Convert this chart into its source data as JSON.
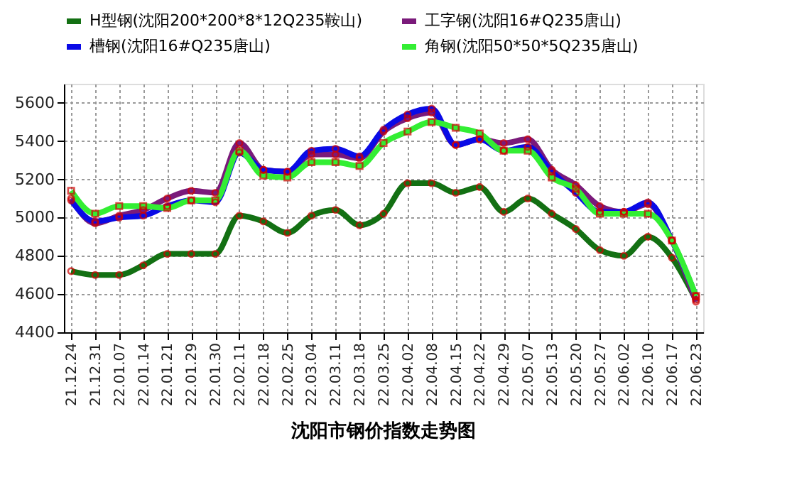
{
  "chart_data": {
    "type": "line",
    "title": "沈阳市钢价指数走势图",
    "categories": [
      "21.12.24",
      "21.12.31",
      "22.01.07",
      "22.01.14",
      "22.01.21",
      "22.01.29",
      "22.01.30",
      "22.02.11",
      "22.02.18",
      "22.02.25",
      "22.03.04",
      "22.03.11",
      "22.03.18",
      "22.03.25",
      "22.04.02",
      "22.04.08",
      "22.04.15",
      "22.04.22",
      "22.04.29",
      "22.05.07",
      "22.05.13",
      "22.05.20",
      "22.05.27",
      "22.06.02",
      "22.06.10",
      "22.06.17",
      "22.06.23"
    ],
    "series": [
      {
        "name": "H型钢(沈阳200*200*8*12Q235鞍山)",
        "color": "#137013",
        "marker": "circle",
        "values": [
          4720,
          4700,
          4700,
          4750,
          4810,
          4810,
          4810,
          5010,
          4980,
          4920,
          5010,
          5040,
          4960,
          5020,
          5180,
          5180,
          5130,
          5160,
          5030,
          5100,
          5020,
          4940,
          4830,
          4800,
          4900,
          4790,
          4570
        ]
      },
      {
        "name": "工字钢(沈阳16#Q235唐山)",
        "color": "#7a1a7a",
        "marker": "circle",
        "values": [
          5100,
          4970,
          5010,
          5040,
          5100,
          5140,
          5130,
          5390,
          5250,
          5240,
          5330,
          5330,
          5310,
          5450,
          5520,
          5550,
          5380,
          5410,
          5390,
          5410,
          5250,
          5170,
          5060,
          5030,
          5070,
          4880,
          4560
        ]
      },
      {
        "name": "槽钢(沈阳16#Q235唐山)",
        "color": "#0a0ae6",
        "marker": "circle",
        "values": [
          5090,
          4980,
          5000,
          5010,
          5060,
          5090,
          5080,
          5340,
          5250,
          5240,
          5350,
          5360,
          5320,
          5460,
          5540,
          5570,
          5380,
          5410,
          5350,
          5370,
          5240,
          5130,
          5030,
          5030,
          5080,
          4880,
          4590
        ]
      },
      {
        "name": "角钢(沈阳50*50*5Q235唐山)",
        "color": "#33ee33",
        "marker": "square",
        "values": [
          5140,
          5020,
          5060,
          5060,
          5050,
          5090,
          5090,
          5350,
          5220,
          5210,
          5290,
          5290,
          5270,
          5390,
          5450,
          5500,
          5470,
          5440,
          5350,
          5350,
          5210,
          5150,
          5020,
          5020,
          5020,
          4880,
          4590
        ]
      }
    ],
    "ylim": [
      4400,
      5700
    ],
    "yticks": [
      4400,
      4600,
      4800,
      5000,
      5200,
      5400,
      5600
    ],
    "grid": true,
    "legend": "top",
    "line_style": "solid"
  }
}
